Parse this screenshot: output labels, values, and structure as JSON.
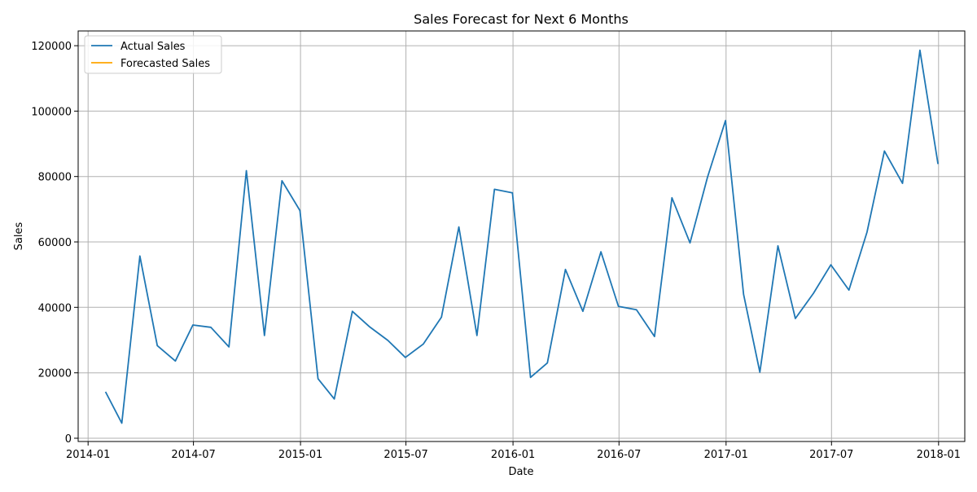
{
  "chart_data": {
    "type": "line",
    "title": "Sales Forecast for Next 6 Months",
    "xlabel": "Date",
    "ylabel": "Sales",
    "x_ticks": [
      "2014-01",
      "2014-07",
      "2015-01",
      "2015-07",
      "2016-01",
      "2016-07",
      "2017-01",
      "2017-07",
      "2018-01"
    ],
    "y_ticks": [
      0,
      20000,
      40000,
      60000,
      80000,
      100000,
      120000
    ],
    "xlim": [
      "2013-12-15",
      "2018-02-15"
    ],
    "ylim": [
      -1000,
      124500
    ],
    "grid": true,
    "legend_position": "top-left",
    "series": [
      {
        "name": "Actual Sales",
        "color": "#1f77b4",
        "x": [
          "2014-01-31",
          "2014-02-28",
          "2014-03-31",
          "2014-04-30",
          "2014-05-31",
          "2014-06-30",
          "2014-07-31",
          "2014-08-31",
          "2014-09-30",
          "2014-10-31",
          "2014-11-30",
          "2014-12-31",
          "2015-01-31",
          "2015-02-28",
          "2015-03-31",
          "2015-04-30",
          "2015-05-31",
          "2015-06-30",
          "2015-07-31",
          "2015-08-31",
          "2015-09-30",
          "2015-10-31",
          "2015-11-30",
          "2015-12-31",
          "2016-01-31",
          "2016-02-29",
          "2016-03-31",
          "2016-04-30",
          "2016-05-31",
          "2016-06-30",
          "2016-07-31",
          "2016-08-31",
          "2016-09-30",
          "2016-10-31",
          "2016-11-30",
          "2016-12-31",
          "2017-01-31",
          "2017-02-28",
          "2017-03-31",
          "2017-04-30",
          "2017-05-31",
          "2017-06-30",
          "2017-07-31",
          "2017-08-31",
          "2017-09-30",
          "2017-10-31",
          "2017-11-30",
          "2017-12-31"
        ],
        "values": [
          14200,
          4600,
          55700,
          28300,
          23600,
          34600,
          33900,
          27900,
          81800,
          31400,
          78700,
          69600,
          18200,
          12000,
          38800,
          34000,
          29900,
          24700,
          28800,
          37000,
          64600,
          31400,
          76100,
          75000,
          18600,
          23000,
          51600,
          38800,
          57000,
          40300,
          39300,
          31100,
          73500,
          59700,
          79800,
          97100,
          44000,
          20200,
          58800,
          36600,
          44300,
          53000,
          45300,
          63000,
          87800,
          77900,
          118600,
          83800
        ]
      },
      {
        "name": "Forecasted Sales",
        "color": "#ffa500",
        "x": [],
        "values": []
      }
    ]
  }
}
